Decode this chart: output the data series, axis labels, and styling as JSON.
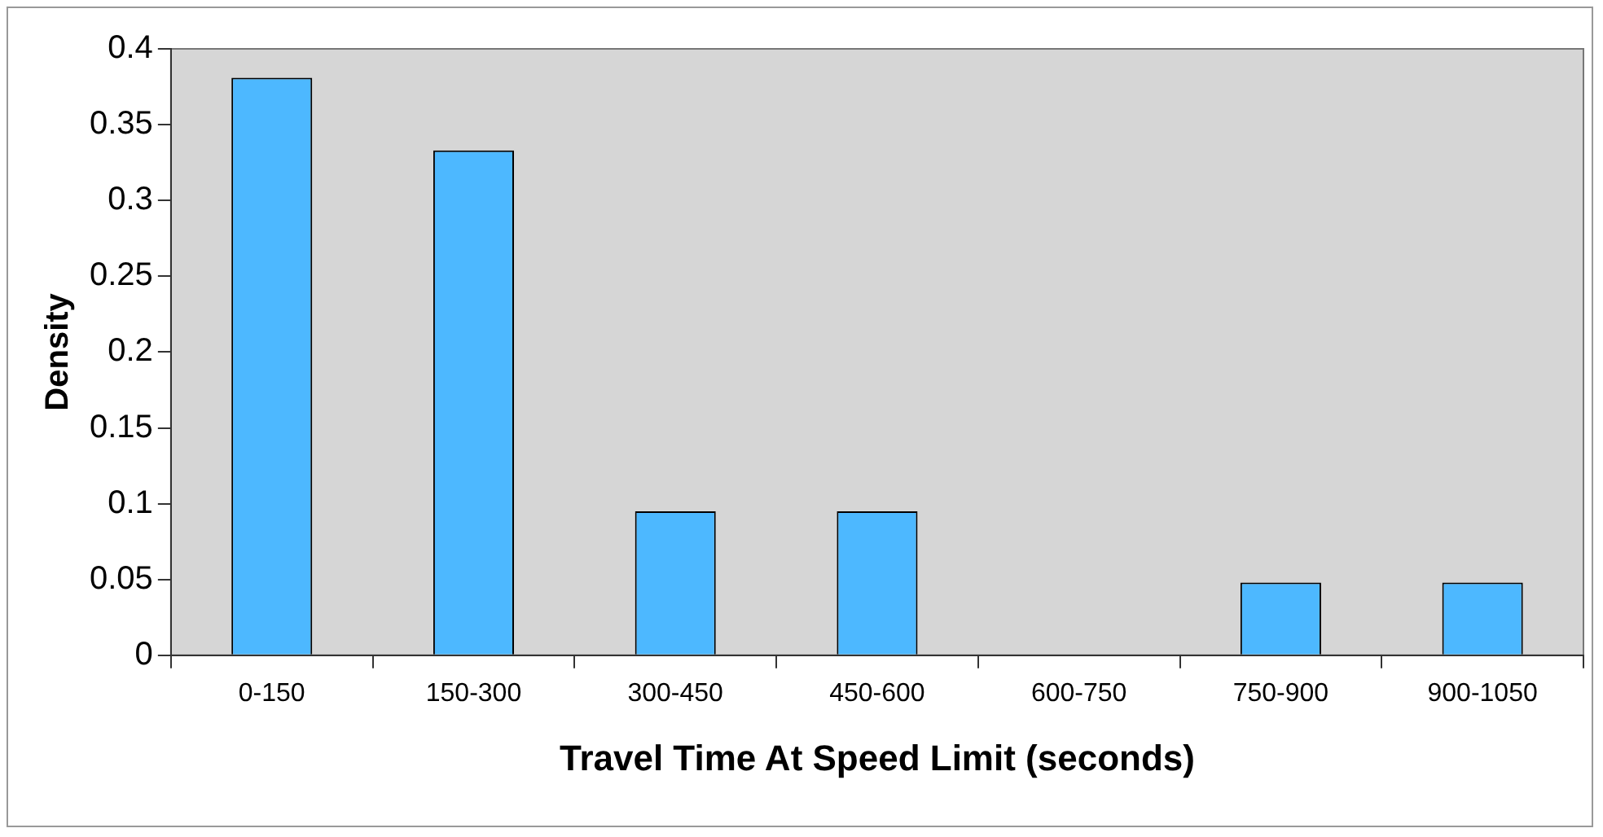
{
  "chart_data": {
    "type": "bar",
    "xlabel": "Travel Time At Speed Limit (seconds)",
    "ylabel": "Density",
    "categories": [
      "0-150",
      "150-300",
      "300-450",
      "450-600",
      "600-750",
      "750-900",
      "900-1050"
    ],
    "values": [
      0.381,
      0.333,
      0.095,
      0.095,
      0,
      0.048,
      0.048
    ],
    "color": "#4db8ff",
    "ylim": [
      0,
      0.4
    ],
    "yticks": [
      0,
      0.05,
      0.1,
      0.15,
      0.2,
      0.25,
      0.3,
      0.35,
      0.4
    ],
    "legend": false
  }
}
